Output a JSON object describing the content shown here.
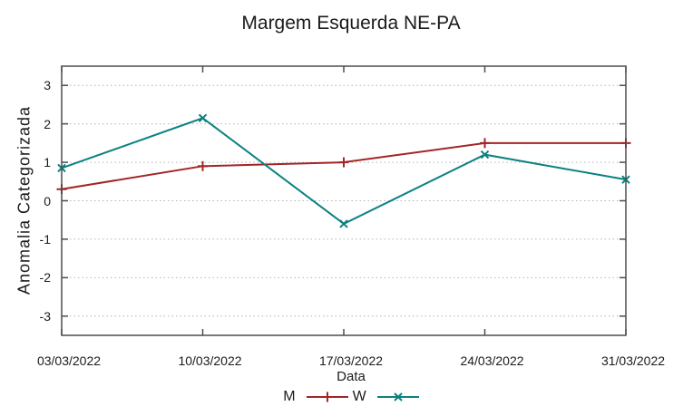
{
  "chart_data": {
    "type": "line",
    "title": "Margem Esquerda NE-PA",
    "xlabel": "Data",
    "ylabel": "Anomalia Categorizada",
    "categories": [
      "03/03/2022",
      "10/03/2022",
      "17/03/2022",
      "24/03/2022",
      "31/03/2022"
    ],
    "series": [
      {
        "name": "M",
        "values": [
          0.3,
          0.9,
          1.0,
          1.5,
          1.5
        ],
        "color": "#a32525",
        "marker": "plus-marker-icon"
      },
      {
        "name": "W",
        "values": [
          0.85,
          2.15,
          -0.6,
          1.2,
          0.55
        ],
        "color": "#0c8181",
        "marker": "cross-marker-icon"
      }
    ],
    "ylim": [
      -3.5,
      3.5
    ],
    "yticks": [
      -3,
      -2,
      -1,
      0,
      1,
      2,
      3
    ],
    "grid": "horizontal-dotted",
    "legend_position": "bottom-center",
    "colors": {
      "background": "#ffffff",
      "border": "#4d4d4d",
      "grid": "#b3b3b3",
      "text": "#1b1b1b"
    }
  }
}
